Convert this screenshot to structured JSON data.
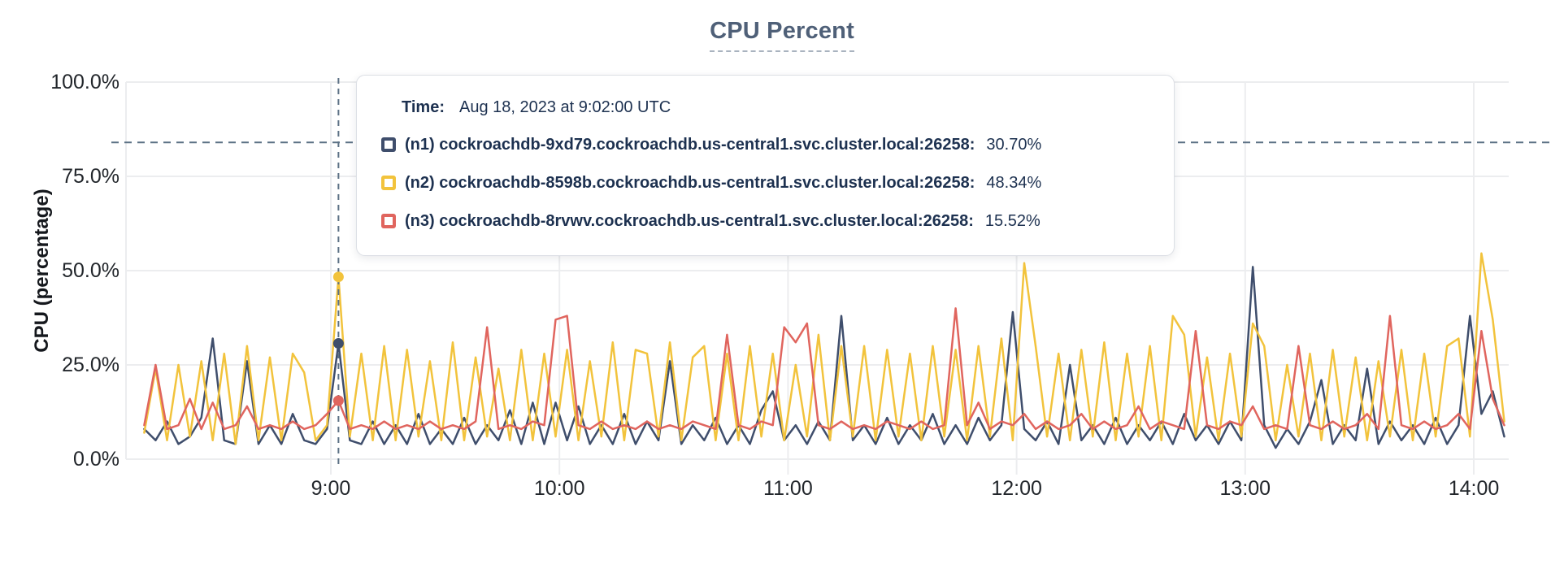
{
  "title": "CPU Percent",
  "colors": {
    "title": "#4f6078",
    "text": "#1d3150",
    "axis": "#22262b",
    "grid": "#ecedef",
    "dash": "#5b7084",
    "tooltip_border": "#dcdfe5"
  },
  "tooltip": {
    "time_label": "Time:",
    "time_value": "Aug 18, 2023 at 9:02:00 UTC",
    "rows": [
      {
        "label": "(n1) cockroachdb-9xd79.cockroachdb.us-central1.svc.cluster.local:26258:",
        "value": "30.70%"
      },
      {
        "label": "(n2) cockroachdb-8598b.cockroachdb.us-central1.svc.cluster.local:26258:",
        "value": "48.34%"
      },
      {
        "label": "(n3) cockroachdb-8rvwv.cockroachdb.us-central1.svc.cluster.local:26258:",
        "value": "15.52%"
      }
    ]
  },
  "chart_data": {
    "type": "line",
    "title": "CPU Percent",
    "xlabel": "",
    "ylabel": "CPU (percentage)",
    "ylim": [
      0,
      100
    ],
    "grid": true,
    "legend_position": "tooltip-overlay",
    "y_ticks": [
      {
        "value": 0,
        "label": "0.0%"
      },
      {
        "value": 25,
        "label": "25.0%"
      },
      {
        "value": 50,
        "label": "50.0%"
      },
      {
        "value": 75,
        "label": "75.0%"
      },
      {
        "value": 100,
        "label": "100.0%"
      }
    ],
    "x_hour_ticks": [
      {
        "minute": 540,
        "label": "9:00"
      },
      {
        "minute": 600,
        "label": "10:00"
      },
      {
        "minute": 660,
        "label": "11:00"
      },
      {
        "minute": 720,
        "label": "12:00"
      },
      {
        "minute": 780,
        "label": "13:00"
      },
      {
        "minute": 840,
        "label": "14:00"
      }
    ],
    "x_start_minute": 491,
    "x_step_minutes": 3,
    "threshold_pct": 84,
    "hover": {
      "minute": 542,
      "time_text": "Aug 18, 2023 at 9:02:00 UTC",
      "dot_values": [
        30.7,
        48.34,
        15.52
      ]
    },
    "series": [
      {
        "name": "(n1) cockroachdb-9xd79.cockroachdb.us-central1.svc.cluster.local:26258",
        "color": "#3f4e6c",
        "values": [
          8,
          5,
          10,
          4,
          6,
          11,
          32,
          5,
          4,
          26,
          4,
          9,
          4,
          12,
          5,
          4,
          8,
          30.7,
          5,
          4,
          10,
          4,
          9,
          4,
          12,
          4,
          8,
          4,
          11,
          4,
          9,
          5,
          13,
          4,
          15,
          4,
          15,
          5,
          14,
          4,
          9,
          4,
          12,
          4,
          10,
          5,
          26,
          4,
          9,
          5,
          11,
          4,
          9,
          4,
          13,
          18,
          5,
          9,
          4,
          10,
          5,
          38,
          5,
          9,
          4,
          11,
          4,
          9,
          5,
          12,
          4,
          9,
          4,
          11,
          5,
          9,
          39,
          8,
          5,
          10,
          4,
          25,
          5,
          9,
          4,
          11,
          4,
          9,
          5,
          10,
          4,
          12,
          5,
          9,
          4,
          10,
          5,
          51,
          9,
          3,
          8,
          4,
          10,
          21,
          4,
          9,
          5,
          24,
          4,
          10,
          5,
          9,
          4,
          11,
          4,
          9,
          38,
          12,
          18,
          6
        ]
      },
      {
        "name": "(n2) cockroachdb-8598b.cockroachdb.us-central1.svc.cluster.local:26258",
        "color": "#f2c33c",
        "values": [
          7,
          24,
          5,
          25,
          6,
          26,
          5,
          28,
          4,
          30,
          5,
          27,
          5,
          28,
          23,
          5,
          9,
          48.34,
          6,
          28,
          5,
          30,
          5,
          29,
          6,
          26,
          5,
          31,
          5,
          27,
          6,
          24,
          5,
          29,
          5,
          28,
          6,
          29,
          5,
          26,
          6,
          31,
          5,
          29,
          28,
          6,
          31,
          5,
          27,
          30,
          5,
          28,
          5,
          30,
          6,
          28,
          5,
          25,
          6,
          33,
          5,
          30,
          6,
          30,
          5,
          29,
          6,
          28,
          5,
          30,
          6,
          29,
          5,
          30,
          6,
          32,
          5,
          52,
          30,
          6,
          28,
          5,
          29,
          6,
          31,
          5,
          28,
          6,
          30,
          5,
          38,
          33,
          6,
          27,
          5,
          28,
          6,
          36,
          30,
          5,
          25,
          6,
          28,
          5,
          29,
          6,
          27,
          5,
          26,
          6,
          29,
          5,
          28,
          6,
          30,
          32,
          6,
          54.6,
          37,
          10
        ]
      },
      {
        "name": "(n3) cockroachdb-8rvwv.cockroachdb.us-central1.svc.cluster.local:26258",
        "color": "#e0655e",
        "values": [
          9,
          25,
          8,
          9,
          16,
          8,
          15,
          8,
          9,
          14,
          8,
          9,
          8,
          10,
          8,
          9,
          12,
          15.52,
          8,
          9,
          8,
          10,
          8,
          9,
          8,
          10,
          8,
          9,
          8,
          10,
          35,
          8,
          9,
          8,
          10,
          9,
          37,
          38,
          9,
          8,
          10,
          8,
          9,
          8,
          10,
          8,
          9,
          8,
          10,
          9,
          8,
          33,
          9,
          8,
          10,
          9,
          35,
          31,
          36,
          9,
          8,
          10,
          8,
          9,
          8,
          10,
          9,
          8,
          10,
          8,
          9,
          40,
          9,
          15,
          8,
          10,
          9,
          12,
          8,
          10,
          8,
          9,
          12,
          8,
          10,
          8,
          9,
          14,
          8,
          10,
          9,
          8,
          34,
          9,
          8,
          10,
          9,
          14,
          8,
          9,
          8,
          30,
          9,
          8,
          10,
          8,
          9,
          12,
          8,
          38,
          9,
          8,
          10,
          8,
          9,
          12,
          8,
          34,
          16,
          9
        ]
      }
    ]
  }
}
